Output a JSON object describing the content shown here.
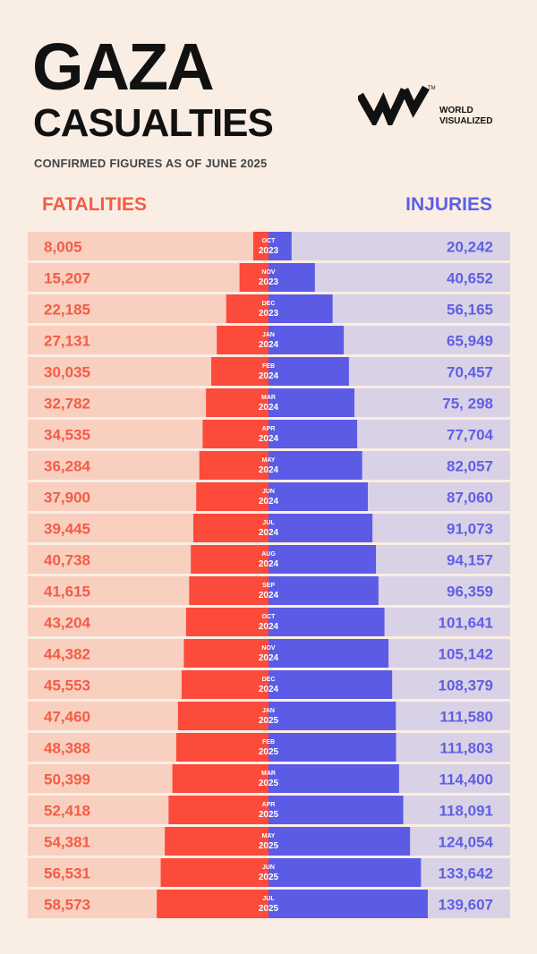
{
  "header": {
    "title": "GAZA",
    "subtitle": "CASUALTIES",
    "caption": "CONFIRMED FIGURES AS OF JUNE 2025"
  },
  "logo": {
    "text": "WORLD\nVISUALIZED",
    "icon": "wv-logo-icon"
  },
  "legend": {
    "left": "FATALITIES",
    "right": "INJURIES"
  },
  "colors": {
    "background": "#faeee4",
    "fatalities": "#fc4a3b",
    "fatalities_bg": "#f9cfc0",
    "injuries": "#5b5be6",
    "injuries_bg": "#d9d2e6",
    "fatalities_text": "#f25d45",
    "injuries_text": "#5f5fe6"
  },
  "chart_data": {
    "type": "bar",
    "orientation": "diverging-horizontal",
    "title": "GAZA CASUALTIES",
    "subtitle": "CONFIRMED FIGURES AS OF JUNE 2025",
    "categories": [
      {
        "month": "OCT",
        "year": "2023"
      },
      {
        "month": "NOV",
        "year": "2023"
      },
      {
        "month": "DEC",
        "year": "2023"
      },
      {
        "month": "JAN",
        "year": "2024"
      },
      {
        "month": "FEB",
        "year": "2024"
      },
      {
        "month": "MAR",
        "year": "2024"
      },
      {
        "month": "APR",
        "year": "2024"
      },
      {
        "month": "MAY",
        "year": "2024"
      },
      {
        "month": "JUN",
        "year": "2024"
      },
      {
        "month": "JUL",
        "year": "2024"
      },
      {
        "month": "AUG",
        "year": "2024"
      },
      {
        "month": "SEP",
        "year": "2024"
      },
      {
        "month": "OCT",
        "year": "2024"
      },
      {
        "month": "NOV",
        "year": "2024"
      },
      {
        "month": "DEC",
        "year": "2024"
      },
      {
        "month": "JAN",
        "year": "2025"
      },
      {
        "month": "FEB",
        "year": "2025"
      },
      {
        "month": "MAR",
        "year": "2025"
      },
      {
        "month": "APR",
        "year": "2025"
      },
      {
        "month": "MAY",
        "year": "2025"
      },
      {
        "month": "JUN",
        "year": "2025"
      },
      {
        "month": "JUL",
        "year": "2025"
      }
    ],
    "series": [
      {
        "name": "FATALITIES",
        "side": "left",
        "values": [
          8005,
          15207,
          22185,
          27131,
          30035,
          32782,
          34535,
          36284,
          37900,
          39445,
          40738,
          41615,
          43204,
          44382,
          45553,
          47460,
          48388,
          50399,
          52418,
          54381,
          56531,
          58573
        ],
        "labels": [
          "8,005",
          "15,207",
          "22,185",
          "27,131",
          "30,035",
          "32,782",
          "34,535",
          "36,284",
          "37,900",
          "39,445",
          "40,738",
          "41,615",
          "43,204",
          "44,382",
          "45,553",
          "47,460",
          "48,388",
          "50,399",
          "52,418",
          "54,381",
          "56,531",
          "58,573"
        ]
      },
      {
        "name": "INJURIES",
        "side": "right",
        "values": [
          20242,
          40652,
          56165,
          65949,
          70457,
          75298,
          77704,
          82057,
          87060,
          91073,
          94157,
          96359,
          101641,
          105142,
          108379,
          111580,
          111803,
          114400,
          118091,
          124054,
          133642,
          139607
        ],
        "labels": [
          "20,242",
          "40,652",
          "56,165",
          "65,949",
          "70,457",
          "75, 298",
          "77,704",
          "82,057",
          "87,060",
          "91,073",
          "94,157",
          "96,359",
          "101,641",
          "105,142",
          "108,379",
          "111,580",
          "111,803",
          "114,400",
          "118,091",
          "124,054",
          "133,642",
          "139,607"
        ]
      }
    ],
    "xlim_fatalities": [
      0,
      60000
    ],
    "xlim_injuries": [
      0,
      140000
    ]
  }
}
